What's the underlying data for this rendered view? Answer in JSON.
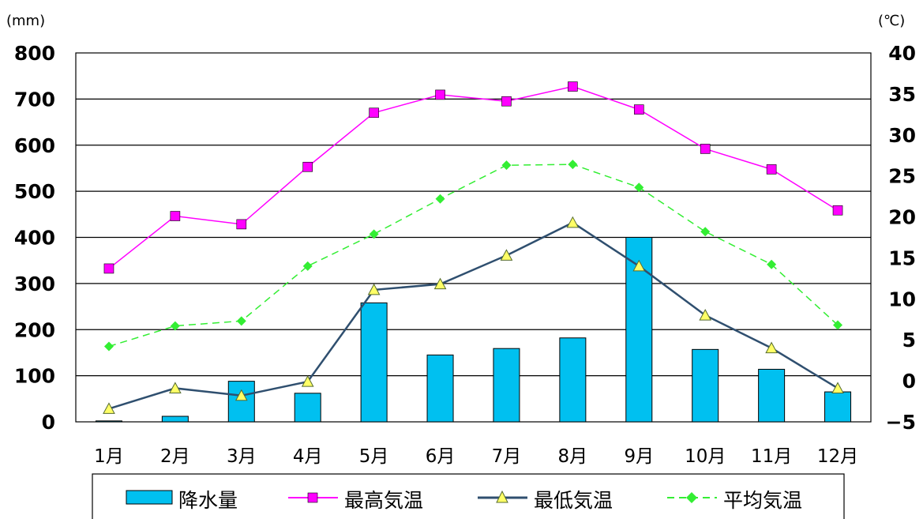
{
  "chart_data": {
    "type": "bar",
    "categories": [
      "1月",
      "2月",
      "3月",
      "4月",
      "5月",
      "6月",
      "7月",
      "8月",
      "9月",
      "10月",
      "11月",
      "12月"
    ],
    "y_left": {
      "unit_label": "(mm)",
      "range": [
        0,
        800
      ],
      "ticks": [
        0,
        100,
        200,
        300,
        400,
        500,
        600,
        700,
        800
      ]
    },
    "y_right": {
      "unit_label": "(℃)",
      "range": [
        -5,
        40
      ],
      "ticks": [
        -5,
        0,
        5,
        10,
        15,
        20,
        25,
        30,
        35,
        40
      ]
    },
    "grid": true,
    "legend_position": "bottom",
    "series": [
      {
        "name": "降水量",
        "type": "bar",
        "axis": "left",
        "color": "#00c0f0",
        "values": [
          2,
          12,
          88,
          62,
          258,
          145,
          159,
          182,
          400,
          157,
          114,
          65
        ]
      },
      {
        "name": "最高気温",
        "type": "line",
        "axis": "right",
        "color": "#ff00ff",
        "marker": "square",
        "dash": "solid",
        "values": [
          13.7,
          20.1,
          19.1,
          26.1,
          32.7,
          34.9,
          34.1,
          35.9,
          33.1,
          28.3,
          25.8,
          20.8
        ]
      },
      {
        "name": "最低気温",
        "type": "line",
        "axis": "right",
        "color": "#2f4f6f",
        "marker": "triangle",
        "markerColor": "#ffff66",
        "dash": "solid",
        "values": [
          -3.4,
          -0.9,
          -1.8,
          -0.1,
          11.1,
          11.8,
          15.3,
          19.3,
          14,
          8,
          4,
          -0.9
        ]
      },
      {
        "name": "平均気温",
        "type": "line",
        "axis": "right",
        "color": "#33ee33",
        "marker": "diamond",
        "dash": "dashed",
        "values": [
          4.2,
          6.7,
          7.3,
          14,
          17.9,
          22.2,
          26.3,
          26.4,
          23.6,
          18.2,
          14.2,
          6.8
        ]
      }
    ]
  }
}
